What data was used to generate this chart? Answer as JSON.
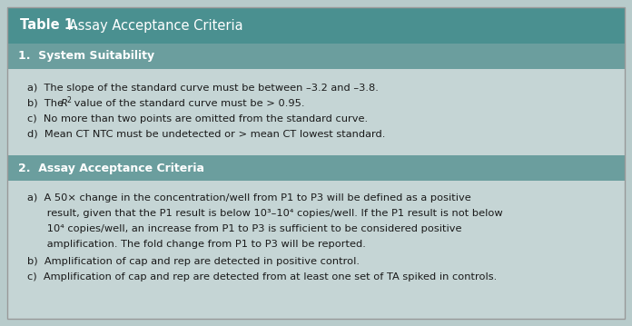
{
  "title_bold": "Table 1.",
  "title_normal": " Assay Acceptance Criteria",
  "header_bg": "#4a9090",
  "section_bg": "#6b9e9e",
  "body_bg": "#c5d5d5",
  "outer_bg": "#b8cbcb",
  "text_dark": "#1a1a1a",
  "white": "#ffffff",
  "section1_label": "1.  System Suitability",
  "section2_label": "2.  Assay Acceptance Criteria",
  "section1_items_a": "a)  The slope of the standard curve must be between –3.2 and –3.8.",
  "section1_items_b_pre": "b)  The ",
  "section1_items_b_italic": "R",
  "section1_items_b_super": "2",
  "section1_items_b_post": " value of the standard curve must be > 0.95.",
  "section1_items_c": "c)  No more than two points are omitted from the standard curve.",
  "section1_items_d": "d)  Mean CT NTC must be undetected or > mean CT lowest standard.",
  "s2a_line1": "a)  A 50× change in the concentration/well from P1 to P3 will be defined as a positive",
  "s2a_line2": "      result, given that the P1 result is below 10³–10⁴ copies/well. If the P1 result is not below",
  "s2a_line3": "      10⁴ copies/well, an increase from P1 to P3 is sufficient to be considered positive",
  "s2a_line4": "      amplification. The fold change from P1 to P3 will be reported.",
  "s2b": "b)  Amplification of cap and rep are detected in positive control.",
  "s2c": "c)  Amplification of cap and rep are detected from at least one set of TA spiked in controls.",
  "font_size_title": 10.5,
  "font_size_section": 9.0,
  "font_size_body": 8.2,
  "fig_width": 6.96,
  "fig_height": 3.59,
  "dpi": 100
}
